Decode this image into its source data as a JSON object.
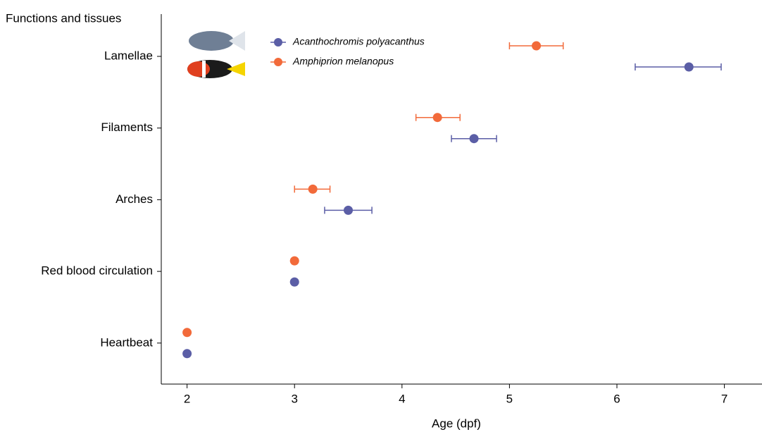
{
  "chart_data": {
    "type": "dot-errorbar",
    "y_label": "Functions and tissues",
    "x_label": "Age (dpf)",
    "categories": [
      "Lamellae",
      "Filaments",
      "Arches",
      "Red blood circulation",
      "Heartbeat"
    ],
    "series": [
      {
        "name": "Acanthochromis polyacanthus",
        "color": "#5b5ea6",
        "values": [
          6.67,
          4.67,
          3.5,
          3.0,
          2.0
        ],
        "lower": [
          6.17,
          4.46,
          3.28,
          null,
          null
        ],
        "upper": [
          6.97,
          4.88,
          3.72,
          null,
          null
        ]
      },
      {
        "name": "Amphiprion melanopus",
        "color": "#f26a3a",
        "values": [
          5.25,
          4.33,
          3.17,
          3.0,
          2.0
        ],
        "lower": [
          5.0,
          4.13,
          3.0,
          null,
          null
        ],
        "upper": [
          5.5,
          4.54,
          3.33,
          null,
          null
        ]
      }
    ],
    "xlim": [
      1.76,
      7.35
    ],
    "xticks": [
      2,
      3,
      4,
      5,
      6,
      7
    ]
  }
}
